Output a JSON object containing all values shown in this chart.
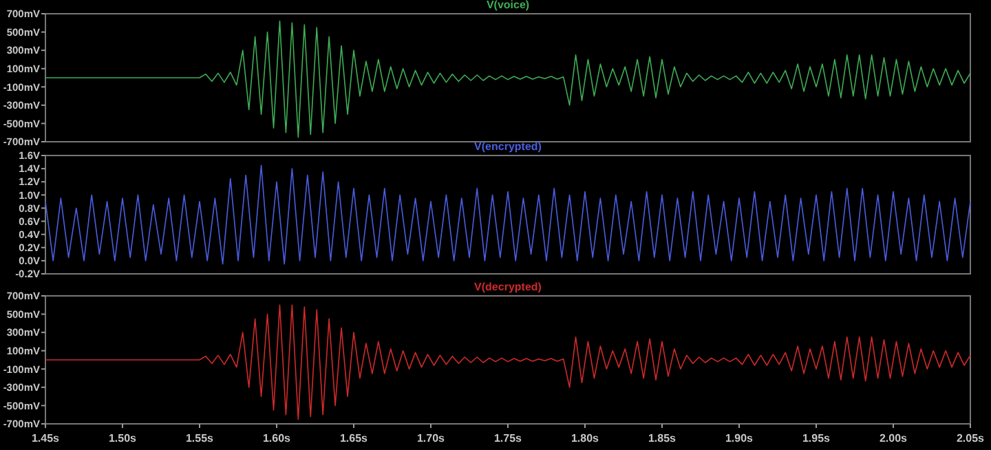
{
  "chart_data": [
    {
      "type": "line",
      "title": "V(voice)",
      "xlim": [
        1.45,
        2.05
      ],
      "ylim": [
        -700,
        700
      ],
      "yticks": [
        {
          "value": 700,
          "label": "700mV"
        },
        {
          "value": 500,
          "label": "500mV"
        },
        {
          "value": 300,
          "label": "300mV"
        },
        {
          "value": 100,
          "label": "100mV"
        },
        {
          "value": -100,
          "label": "-100mV"
        },
        {
          "value": -300,
          "label": "-300mV"
        },
        {
          "value": -500,
          "label": "-500mV"
        },
        {
          "value": -700,
          "label": "-700mV"
        }
      ],
      "tick_labels": "y",
      "series": [
        {
          "color": "#3fae55",
          "x": [
            1.45,
            1.55,
            1.554,
            1.558,
            1.562,
            1.566,
            1.57,
            1.574,
            1.578,
            1.582,
            1.586,
            1.59,
            1.594,
            1.598,
            1.602,
            1.606,
            1.61,
            1.614,
            1.618,
            1.622,
            1.626,
            1.63,
            1.634,
            1.638,
            1.642,
            1.646,
            1.65,
            1.654,
            1.658,
            1.662,
            1.666,
            1.67,
            1.674,
            1.678,
            1.682,
            1.686,
            1.69,
            1.694,
            1.698,
            1.702,
            1.706,
            1.71,
            1.714,
            1.718,
            1.722,
            1.726,
            1.73,
            1.734,
            1.738,
            1.742,
            1.746,
            1.75,
            1.754,
            1.758,
            1.762,
            1.766,
            1.77,
            1.774,
            1.778,
            1.782,
            1.786,
            1.79,
            1.794,
            1.798,
            1.802,
            1.806,
            1.81,
            1.814,
            1.818,
            1.822,
            1.826,
            1.83,
            1.834,
            1.838,
            1.842,
            1.846,
            1.85,
            1.854,
            1.858,
            1.862,
            1.866,
            1.87,
            1.874,
            1.878,
            1.882,
            1.886,
            1.89,
            1.894,
            1.898,
            1.902,
            1.906,
            1.91,
            1.914,
            1.918,
            1.922,
            1.926,
            1.93,
            1.934,
            1.938,
            1.942,
            1.946,
            1.95,
            1.954,
            1.958,
            1.962,
            1.966,
            1.97,
            1.974,
            1.978,
            1.982,
            1.986,
            1.99,
            1.994,
            1.998,
            2.002,
            2.006,
            2.01,
            2.014,
            2.018,
            2.022,
            2.026,
            2.03,
            2.034,
            2.038,
            2.042,
            2.046,
            2.05
          ],
          "values": [
            0,
            0,
            40,
            -40,
            50,
            -50,
            60,
            -80,
            300,
            -350,
            450,
            -400,
            500,
            -550,
            620,
            -600,
            600,
            -650,
            580,
            -620,
            550,
            -600,
            450,
            -500,
            350,
            -400,
            300,
            -200,
            180,
            -150,
            200,
            -150,
            120,
            -120,
            100,
            -100,
            80,
            -80,
            60,
            -60,
            50,
            -50,
            40,
            -40,
            30,
            -30,
            30,
            -30,
            20,
            -20,
            20,
            -20,
            15,
            -15,
            15,
            -15,
            10,
            -10,
            15,
            -15,
            10,
            -300,
            250,
            -250,
            200,
            -200,
            150,
            -100,
            100,
            -80,
            120,
            -150,
            200,
            -200,
            230,
            -220,
            200,
            -180,
            120,
            -100,
            50,
            -40,
            30,
            -30,
            20,
            -20,
            20,
            -20,
            20,
            -50,
            60,
            -60,
            50,
            -60,
            60,
            -50,
            80,
            -120,
            150,
            -150,
            120,
            -100,
            150,
            -200,
            200,
            -220,
            250,
            -200,
            250,
            -230,
            250,
            -200,
            220,
            -200,
            200,
            -180,
            180,
            -150,
            120,
            -100,
            100,
            -80,
            100,
            -80,
            80,
            -60,
            50
          ]
        }
      ]
    },
    {
      "type": "line",
      "title": "V(encrypted)",
      "xlim": [
        1.45,
        2.05
      ],
      "ylim": [
        -0.2,
        1.6
      ],
      "yticks": [
        {
          "value": 1.6,
          "label": "1.6V"
        },
        {
          "value": 1.4,
          "label": "1.4V"
        },
        {
          "value": 1.2,
          "label": "1.2V"
        },
        {
          "value": 1.0,
          "label": "1.0V"
        },
        {
          "value": 0.8,
          "label": "0.8V"
        },
        {
          "value": 0.6,
          "label": "0.6V"
        },
        {
          "value": 0.4,
          "label": "0.4V"
        },
        {
          "value": 0.2,
          "label": "0.2V"
        },
        {
          "value": 0.0,
          "label": "0.0V"
        },
        {
          "value": -0.2,
          "label": "-0.2V"
        }
      ],
      "tick_labels": "y",
      "series": [
        {
          "color": "#4a5ee0",
          "x": [
            1.45,
            1.455,
            1.46,
            1.465,
            1.47,
            1.475,
            1.48,
            1.485,
            1.49,
            1.495,
            1.5,
            1.505,
            1.51,
            1.515,
            1.52,
            1.525,
            1.53,
            1.535,
            1.54,
            1.545,
            1.55,
            1.555,
            1.56,
            1.565,
            1.57,
            1.575,
            1.58,
            1.585,
            1.59,
            1.595,
            1.6,
            1.605,
            1.61,
            1.615,
            1.62,
            1.625,
            1.63,
            1.635,
            1.64,
            1.645,
            1.65,
            1.655,
            1.66,
            1.665,
            1.67,
            1.675,
            1.68,
            1.685,
            1.69,
            1.695,
            1.7,
            1.705,
            1.71,
            1.715,
            1.72,
            1.725,
            1.73,
            1.735,
            1.74,
            1.745,
            1.75,
            1.755,
            1.76,
            1.765,
            1.77,
            1.775,
            1.78,
            1.785,
            1.79,
            1.795,
            1.8,
            1.805,
            1.81,
            1.815,
            1.82,
            1.825,
            1.83,
            1.835,
            1.84,
            1.845,
            1.85,
            1.855,
            1.86,
            1.865,
            1.87,
            1.875,
            1.88,
            1.885,
            1.89,
            1.895,
            1.9,
            1.905,
            1.91,
            1.915,
            1.92,
            1.925,
            1.93,
            1.935,
            1.94,
            1.945,
            1.95,
            1.955,
            1.96,
            1.965,
            1.97,
            1.975,
            1.98,
            1.985,
            1.99,
            1.995,
            2,
            2.005,
            2.01,
            2.015,
            2.02,
            2.025,
            2.03,
            2.035,
            2.04,
            2.045,
            2.05
          ],
          "values": [
            0.9,
            0.0,
            0.95,
            0.05,
            0.8,
            0.0,
            1.0,
            0.1,
            0.9,
            0.0,
            0.95,
            0.05,
            1.0,
            0.0,
            0.85,
            0.1,
            0.95,
            0.0,
            1.0,
            0.05,
            0.9,
            0.0,
            0.95,
            -0.05,
            1.25,
            0.0,
            1.3,
            0.05,
            1.45,
            0.0,
            1.2,
            -0.05,
            1.4,
            0.0,
            1.3,
            0.05,
            1.35,
            0.0,
            1.2,
            0.05,
            1.1,
            0.0,
            1.0,
            0.05,
            1.1,
            0.0,
            1.0,
            0.1,
            0.95,
            0.0,
            0.9,
            0.05,
            1.0,
            0.0,
            0.95,
            0.05,
            1.1,
            0.0,
            1.0,
            0.05,
            1.05,
            0.0,
            0.95,
            0.1,
            1.0,
            0.0,
            1.1,
            0.05,
            1.0,
            0.0,
            1.05,
            0.05,
            0.95,
            0.0,
            1.0,
            0.1,
            0.9,
            0.0,
            1.05,
            0.05,
            1.0,
            0.0,
            0.95,
            0.05,
            1.05,
            0.0,
            1.0,
            0.1,
            0.9,
            0.0,
            0.95,
            0.05,
            1.05,
            0.0,
            0.9,
            0.05,
            1.0,
            0.0,
            0.95,
            0.1,
            1.0,
            0.0,
            1.05,
            0.05,
            1.1,
            0.0,
            1.1,
            0.05,
            1.0,
            0.0,
            1.05,
            0.1,
            0.95,
            0.0,
            1.0,
            0.05,
            0.9,
            0.0,
            0.95,
            0.05,
            0.9
          ]
        }
      ]
    },
    {
      "type": "line",
      "title": "V(decrypted)",
      "xlim": [
        1.45,
        2.05
      ],
      "ylim": [
        -700,
        700
      ],
      "yticks": [
        {
          "value": 700,
          "label": "700mV"
        },
        {
          "value": 500,
          "label": "500mV"
        },
        {
          "value": 300,
          "label": "300mV"
        },
        {
          "value": 100,
          "label": "100mV"
        },
        {
          "value": -100,
          "label": "-100mV"
        },
        {
          "value": -300,
          "label": "-300mV"
        },
        {
          "value": -500,
          "label": "-500mV"
        },
        {
          "value": -700,
          "label": "-700mV"
        }
      ],
      "xticks": [
        {
          "value": 1.45,
          "label": "1.45s"
        },
        {
          "value": 1.5,
          "label": "1.50s"
        },
        {
          "value": 1.55,
          "label": "1.55s"
        },
        {
          "value": 1.6,
          "label": "1.60s"
        },
        {
          "value": 1.65,
          "label": "1.65s"
        },
        {
          "value": 1.7,
          "label": "1.70s"
        },
        {
          "value": 1.75,
          "label": "1.75s"
        },
        {
          "value": 1.8,
          "label": "1.80s"
        },
        {
          "value": 1.85,
          "label": "1.85s"
        },
        {
          "value": 1.9,
          "label": "1.90s"
        },
        {
          "value": 1.95,
          "label": "1.95s"
        },
        {
          "value": 2.0,
          "label": "2.00s"
        },
        {
          "value": 2.05,
          "label": "2.05s"
        }
      ],
      "series": [
        {
          "color": "#d02a2a",
          "x": [
            1.45,
            1.55,
            1.554,
            1.558,
            1.562,
            1.566,
            1.57,
            1.574,
            1.578,
            1.582,
            1.586,
            1.59,
            1.594,
            1.598,
            1.602,
            1.606,
            1.61,
            1.614,
            1.618,
            1.622,
            1.626,
            1.63,
            1.634,
            1.638,
            1.642,
            1.646,
            1.65,
            1.654,
            1.658,
            1.662,
            1.666,
            1.67,
            1.674,
            1.678,
            1.682,
            1.686,
            1.69,
            1.694,
            1.698,
            1.702,
            1.706,
            1.71,
            1.714,
            1.718,
            1.722,
            1.726,
            1.73,
            1.734,
            1.738,
            1.742,
            1.746,
            1.75,
            1.754,
            1.758,
            1.762,
            1.766,
            1.77,
            1.774,
            1.778,
            1.782,
            1.786,
            1.79,
            1.794,
            1.798,
            1.802,
            1.806,
            1.81,
            1.814,
            1.818,
            1.822,
            1.826,
            1.83,
            1.834,
            1.838,
            1.842,
            1.846,
            1.85,
            1.854,
            1.858,
            1.862,
            1.866,
            1.87,
            1.874,
            1.878,
            1.882,
            1.886,
            1.89,
            1.894,
            1.898,
            1.902,
            1.906,
            1.91,
            1.914,
            1.918,
            1.922,
            1.926,
            1.93,
            1.934,
            1.938,
            1.942,
            1.946,
            1.95,
            1.954,
            1.958,
            1.962,
            1.966,
            1.97,
            1.974,
            1.978,
            1.982,
            1.986,
            1.99,
            1.994,
            1.998,
            2.002,
            2.006,
            2.01,
            2.014,
            2.018,
            2.022,
            2.026,
            2.03,
            2.034,
            2.038,
            2.042,
            2.046,
            2.05
          ],
          "values": [
            0,
            0,
            40,
            -40,
            50,
            -50,
            60,
            -80,
            300,
            -300,
            450,
            -400,
            500,
            -550,
            600,
            -600,
            600,
            -650,
            580,
            -620,
            550,
            -600,
            450,
            -500,
            350,
            -400,
            300,
            -200,
            180,
            -150,
            200,
            -150,
            120,
            -120,
            100,
            -100,
            80,
            -80,
            60,
            -60,
            50,
            -50,
            40,
            -40,
            30,
            -30,
            30,
            -30,
            20,
            -20,
            20,
            -20,
            15,
            -15,
            15,
            -15,
            10,
            -10,
            15,
            -15,
            10,
            -300,
            250,
            -250,
            200,
            -200,
            150,
            -100,
            100,
            -80,
            120,
            -150,
            200,
            -200,
            230,
            -220,
            200,
            -180,
            120,
            -100,
            50,
            -40,
            30,
            -30,
            20,
            -20,
            20,
            -20,
            20,
            -50,
            60,
            -60,
            50,
            -60,
            60,
            -50,
            80,
            -120,
            150,
            -150,
            120,
            -100,
            150,
            -200,
            200,
            -220,
            250,
            -200,
            250,
            -230,
            250,
            -200,
            220,
            -200,
            200,
            -180,
            180,
            -150,
            120,
            -100,
            100,
            -80,
            100,
            -80,
            80,
            -60,
            50
          ]
        }
      ]
    }
  ]
}
